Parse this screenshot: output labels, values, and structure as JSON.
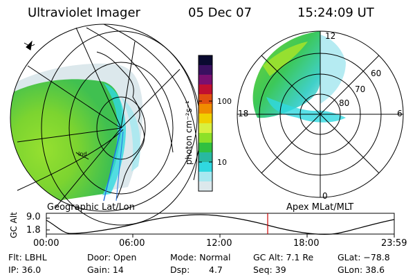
{
  "header": {
    "instrument": "Ultraviolet Imager",
    "date": "05 Dec 07",
    "time": "15:24:09 UT"
  },
  "colorbar": {
    "unit_label": "photon cm⁻²s⁻¹",
    "ticks": [
      "100",
      "10"
    ],
    "colors": [
      "#0a0a30",
      "#3a1060",
      "#7a1070",
      "#c01030",
      "#e05010",
      "#f08c00",
      "#f0d000",
      "#d8f040",
      "#8ce028",
      "#30c040",
      "#28b8a0",
      "#30d8e0",
      "#a8e8f0",
      "#dce8ec"
    ]
  },
  "geo_map": {
    "label": "Geographic Lat/Lon",
    "coastline_labels": [
      "Ind"
    ]
  },
  "polar_map": {
    "label": "Apex MLat/MLT",
    "mlt_labels": {
      "top": "12",
      "left": "18",
      "right": "6",
      "bottom": "0"
    },
    "mlat_labels": [
      "60",
      "70",
      "80"
    ]
  },
  "altitude_plot": {
    "ylabel": "GC Alt",
    "yticks": [
      "9.0",
      "1.8"
    ],
    "xticks": [
      "00:00",
      "06:00",
      "12:00",
      "18:00",
      "23:59"
    ],
    "marker_color": "#cc0000"
  },
  "info": {
    "row1": {
      "flt": "Flt: LBHL",
      "door": "Door: Open",
      "mode": "Mode: Normal",
      "gcalt": "GC Alt: 7.1 Re",
      "glat": "GLat: −78.8"
    },
    "row2": {
      "ip": "IP: 36.0",
      "gain": "Gain: 14",
      "dsp_label": "Dsp:",
      "dsp_value": "4.7",
      "seq": "Seq: 39",
      "glon": "GLon:  38.6"
    }
  }
}
